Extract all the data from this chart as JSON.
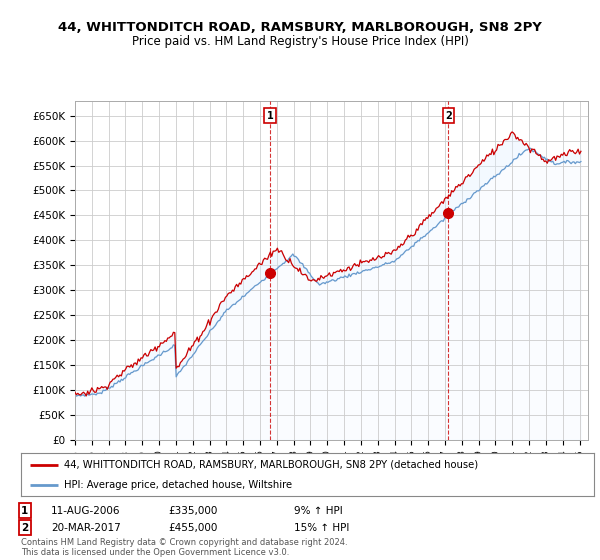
{
  "title_line1": "44, WHITTONDITCH ROAD, RAMSBURY, MARLBOROUGH, SN8 2PY",
  "title_line2": "Price paid vs. HM Land Registry's House Price Index (HPI)",
  "house_color": "#cc0000",
  "hpi_color": "#6699cc",
  "hpi_fill_color": "#ddeeff",
  "marker1_year": 2006.6,
  "marker1_value": 335000,
  "marker2_year": 2017.2,
  "marker2_value": 455000,
  "legend_house_label": "44, WHITTONDITCH ROAD, RAMSBURY, MARLBOROUGH, SN8 2PY (detached house)",
  "legend_hpi_label": "HPI: Average price, detached house, Wiltshire",
  "yticks": [
    0,
    50000,
    100000,
    150000,
    200000,
    250000,
    300000,
    350000,
    400000,
    450000,
    500000,
    550000,
    600000,
    650000
  ],
  "ytick_labels": [
    "£0",
    "£50K",
    "£100K",
    "£150K",
    "£200K",
    "£250K",
    "£300K",
    "£350K",
    "£400K",
    "£450K",
    "£500K",
    "£550K",
    "£600K",
    "£650K"
  ],
  "copyright_text": "Contains HM Land Registry data © Crown copyright and database right 2024.\nThis data is licensed under the Open Government Licence v3.0.",
  "background_color": "#ffffff",
  "grid_color": "#cccccc"
}
